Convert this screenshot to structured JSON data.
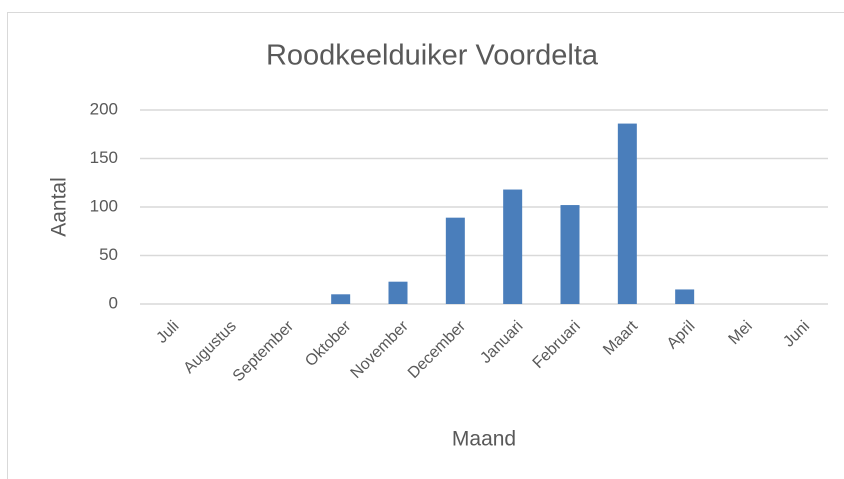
{
  "chart_data": {
    "type": "bar",
    "title": "Roodkeelduiker Voordelta",
    "x_label": "Maand",
    "y_label": "Aantal",
    "categories": [
      "Juli",
      "Augustus",
      "September",
      "Oktober",
      "November",
      "December",
      "Januari",
      "Februari",
      "Maart",
      "April",
      "Mei",
      "Juni"
    ],
    "values": [
      0,
      0,
      0,
      10,
      23,
      89,
      118,
      102,
      186,
      15,
      0,
      0
    ],
    "color": "#4a7ebb",
    "ylim": [
      0,
      200
    ],
    "yticks": [
      0,
      50,
      100,
      150,
      200
    ],
    "grid": true
  }
}
